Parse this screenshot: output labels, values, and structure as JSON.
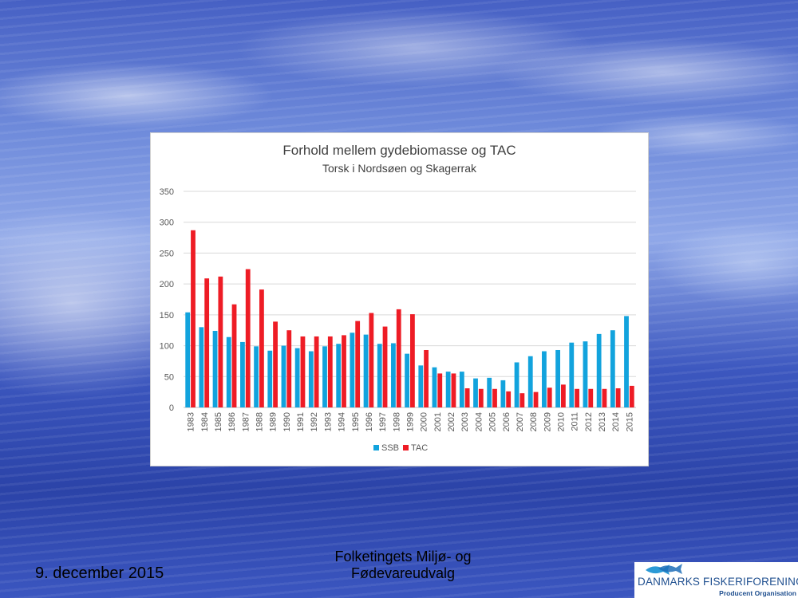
{
  "chart_data": {
    "type": "bar",
    "title": "Forhold mellem gydebiomasse og TAC",
    "subtitle": "Torsk i Nordsøen og Skagerrak",
    "xlabel": "",
    "ylabel": "",
    "ylim": [
      0,
      350
    ],
    "yticks": [
      "0",
      "50",
      "100",
      "150",
      "200",
      "250",
      "300",
      "350"
    ],
    "categories": [
      "1983",
      "1984",
      "1985",
      "1986",
      "1987",
      "1988",
      "1989",
      "1990",
      "1991",
      "1992",
      "1993",
      "1994",
      "1995",
      "1996",
      "1997",
      "1998",
      "1999",
      "2000",
      "2001",
      "2002",
      "2003",
      "2004",
      "2005",
      "2006",
      "2007",
      "2008",
      "2009",
      "2010",
      "2011",
      "2012",
      "2013",
      "2014",
      "2015"
    ],
    "series": [
      {
        "name": "SSB",
        "color": "#12a3dd",
        "values": [
          154,
          130,
          124,
          114,
          106,
          99,
          92,
          100,
          96,
          91,
          99,
          103,
          121,
          118,
          103,
          104,
          87,
          68,
          65,
          58,
          58,
          47,
          48,
          44,
          73,
          83,
          91,
          93,
          105,
          107,
          119,
          125,
          148
        ]
      },
      {
        "name": "TAC",
        "color": "#ee1c25",
        "values": [
          287,
          209,
          212,
          167,
          224,
          191,
          139,
          125,
          115,
          115,
          115,
          117,
          140,
          153,
          131,
          159,
          151,
          93,
          55,
          55,
          31,
          30,
          30,
          26,
          23,
          25,
          32,
          37,
          30,
          30,
          30,
          31,
          35
        ]
      }
    ],
    "grid": true,
    "legend_position": "bottom"
  },
  "footer": {
    "date": "9. december 2015",
    "center_line1": "Folketingets Miljø- og",
    "center_line2": "Fødevareudvalg"
  },
  "logo": {
    "name": "DANMARKS FISKERIFORENING",
    "subtitle": "Producent Organisation",
    "icon": "fish-icon"
  }
}
